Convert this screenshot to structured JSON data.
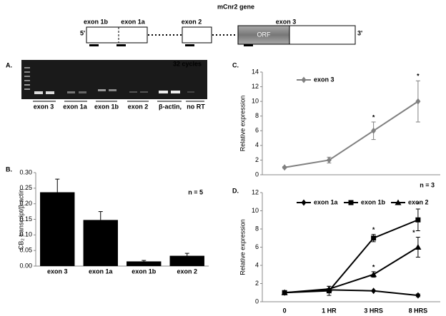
{
  "gene_diagram": {
    "title": "mCnr2 gene",
    "exons": [
      "exon 1b",
      "exon 1a",
      "exon 2",
      "exon 3"
    ],
    "orf": "ORF",
    "end5": "5'",
    "end3": "3'"
  },
  "gel": {
    "label": "A.",
    "cycles": "32 cycles",
    "lanes": [
      "exon 3",
      "exon 1a",
      "exon 1b",
      "exon 2",
      "β-actin,",
      "no RT"
    ]
  },
  "chart_data": [
    {
      "type": "bar",
      "panel": "B.",
      "y_label": "CB₂ transcript/β-actin",
      "annotation": "n = 5",
      "categories": [
        "exon 3",
        "exon 1a",
        "exon 1b",
        "exon 2"
      ],
      "values": [
        0.237,
        0.148,
        0.015,
        0.033
      ],
      "errors": [
        0.042,
        0.027,
        0.003,
        0.008
      ],
      "color": "#000000",
      "ylim": [
        0,
        0.3
      ],
      "yticks": [
        {
          "value": 0,
          "label": "0.00"
        },
        {
          "value": 0.05,
          "label": "0.05"
        },
        {
          "value": 0.1,
          "label": "0.10"
        },
        {
          "value": 0.15,
          "label": "0.15"
        },
        {
          "value": 0.2,
          "label": "0.20"
        },
        {
          "value": 0.25,
          "label": "0.25"
        },
        {
          "value": 0.3,
          "label": "0.30"
        }
      ]
    },
    {
      "type": "line",
      "panel": "C.",
      "y_label": "Relative expression",
      "legend": "top-left",
      "series": [
        {
          "name": "exon 3",
          "color": "#808080",
          "marker": "diamond",
          "values": [
            1,
            2,
            6,
            10
          ],
          "errors": [
            0.1,
            0.4,
            1.2,
            2.8
          ],
          "stars": [
            null,
            null,
            "*",
            "*"
          ]
        }
      ],
      "ylim": [
        0,
        14
      ],
      "yticks": [
        0,
        2,
        4,
        6,
        8,
        10,
        12,
        14
      ]
    },
    {
      "type": "line",
      "panel": "D.",
      "y_label": "Relative expression",
      "annotation": "n = 3",
      "legend": "top",
      "categories": [
        "0",
        "1 HR",
        "3 HRS",
        "8 HRS"
      ],
      "series": [
        {
          "name": "exon 1a",
          "color": "#000000",
          "marker": "diamond",
          "values": [
            1,
            1.3,
            1.2,
            0.7
          ],
          "errors": [
            0.1,
            0.1,
            0.05,
            0.15
          ],
          "stars": [
            null,
            null,
            null,
            null
          ]
        },
        {
          "name": "exon 1b",
          "color": "#000000",
          "marker": "square",
          "values": [
            1,
            1.2,
            7,
            9
          ],
          "errors": [
            0.1,
            0.5,
            0.4,
            1.2
          ],
          "stars": [
            null,
            null,
            "*",
            "*"
          ]
        },
        {
          "name": "exon 2",
          "color": "#000000",
          "marker": "triangle",
          "values": [
            1,
            1.4,
            3,
            6
          ],
          "errors": [
            0.1,
            0.3,
            0.3,
            1.1
          ],
          "stars": [
            null,
            null,
            "*",
            "*"
          ]
        }
      ],
      "ylim": [
        0,
        12
      ],
      "yticks": [
        0,
        2,
        4,
        6,
        8,
        10,
        12
      ]
    }
  ]
}
